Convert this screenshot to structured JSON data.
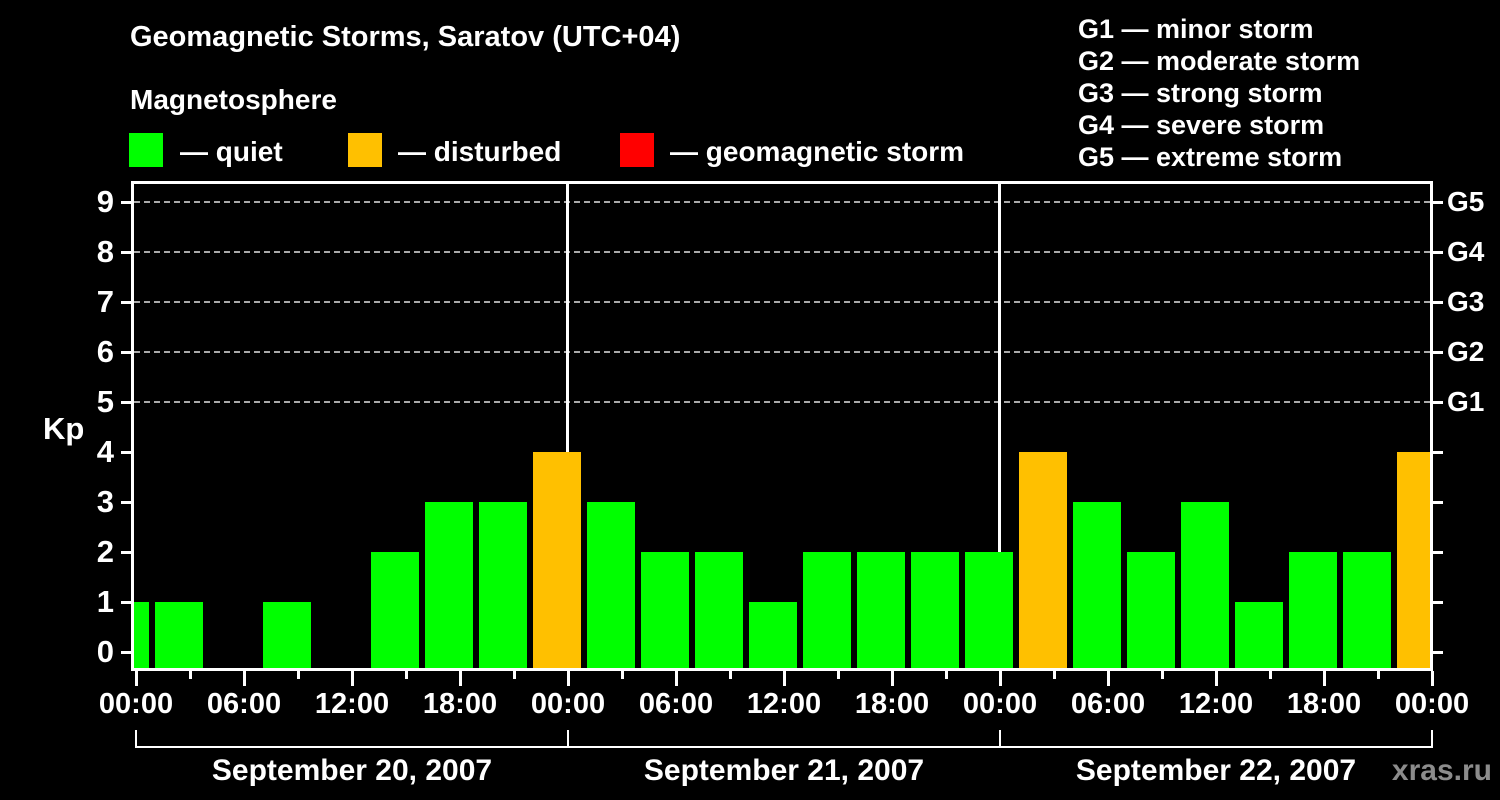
{
  "title": "Geomagnetic Storms, Saratov (UTC+04)",
  "subtitle": "Magnetosphere",
  "watermark": "xras.ru",
  "colors": {
    "quiet": "#00ff00",
    "disturbed": "#ffc000",
    "storm": "#ff0000",
    "axis": "#ffffff",
    "grid": "#aaaaaa",
    "watermark": "#8c8c8c",
    "background": "#000000"
  },
  "legend": [
    {
      "swatch": "quiet",
      "label": "— quiet"
    },
    {
      "swatch": "disturbed",
      "label": "— disturbed"
    },
    {
      "swatch": "storm",
      "label": "— geomagnetic storm"
    }
  ],
  "g_scale_legend": [
    "G1 — minor storm",
    "G2 — moderate storm",
    "G3 — strong storm",
    "G4 — severe storm",
    "G5 — extreme storm"
  ],
  "chart_data": {
    "type": "bar",
    "title": "Geomagnetic Storms, Saratov (UTC+04)",
    "subtitle": "Magnetosphere",
    "ylabel": "Kp",
    "ylim": [
      0,
      9
    ],
    "yticks": [
      0,
      1,
      2,
      3,
      4,
      5,
      6,
      7,
      8,
      9
    ],
    "grid_levels": [
      5,
      6,
      7,
      8,
      9
    ],
    "right_axis_labels": [
      {
        "kp": 5,
        "label": "G1"
      },
      {
        "kp": 6,
        "label": "G2"
      },
      {
        "kp": 7,
        "label": "G3"
      },
      {
        "kp": 8,
        "label": "G4"
      },
      {
        "kp": 9,
        "label": "G5"
      }
    ],
    "x_tick_labels": [
      "00:00",
      "06:00",
      "12:00",
      "18:00",
      "00:00",
      "06:00",
      "12:00",
      "18:00",
      "00:00",
      "06:00",
      "12:00",
      "18:00",
      "00:00"
    ],
    "interval_hours": 3,
    "prev_day_partial_kp": 1,
    "days": [
      {
        "date": "September 20, 2007",
        "kp": [
          1,
          0,
          1,
          0,
          2,
          3,
          3,
          4
        ]
      },
      {
        "date": "September 21, 2007",
        "kp": [
          3,
          2,
          2,
          1,
          2,
          2,
          2,
          2
        ]
      },
      {
        "date": "September 22, 2007",
        "kp": [
          4,
          3,
          2,
          3,
          1,
          2,
          2,
          4
        ]
      }
    ],
    "color_rule": {
      "quiet_max": 3,
      "disturbed_max": 4
    }
  }
}
